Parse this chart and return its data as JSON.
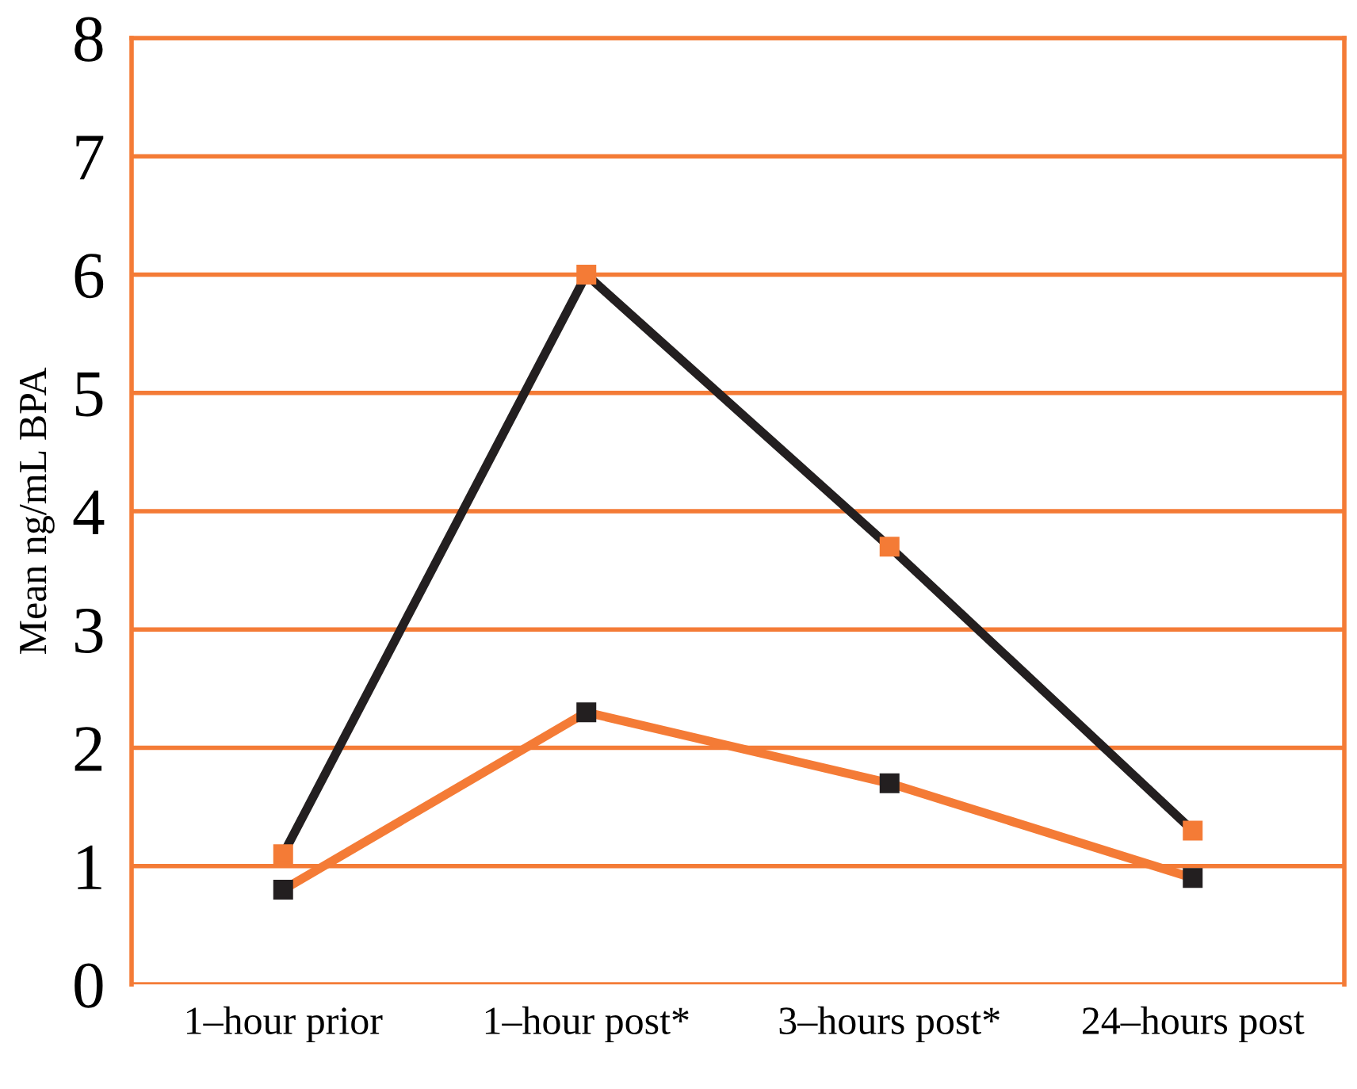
{
  "chart_data": {
    "type": "line",
    "ylabel": "Mean ng/mL BPA",
    "categories": [
      "1–hour prior",
      "1–hour post*",
      "3–hours post*",
      "24–hours post"
    ],
    "series": [
      {
        "color": "#231f20",
        "colors": [
          "#f47b36",
          "#f47b36",
          "#f47b36",
          "#f47b36"
        ],
        "values": [
          1.1,
          6.0,
          3.7,
          1.3
        ]
      },
      {
        "color": "#f47b36",
        "colors": [
          "#231f20",
          "#231f20",
          "#231f20",
          "#231f20"
        ],
        "values": [
          0.8,
          2.3,
          1.7,
          0.9
        ]
      }
    ],
    "ylim": [
      0,
      8
    ],
    "yticks": [
      0,
      1,
      2,
      3,
      4,
      5,
      6,
      7,
      8
    ],
    "grid": "y",
    "marker": "square",
    "line_style": "solid",
    "legend": false
  }
}
